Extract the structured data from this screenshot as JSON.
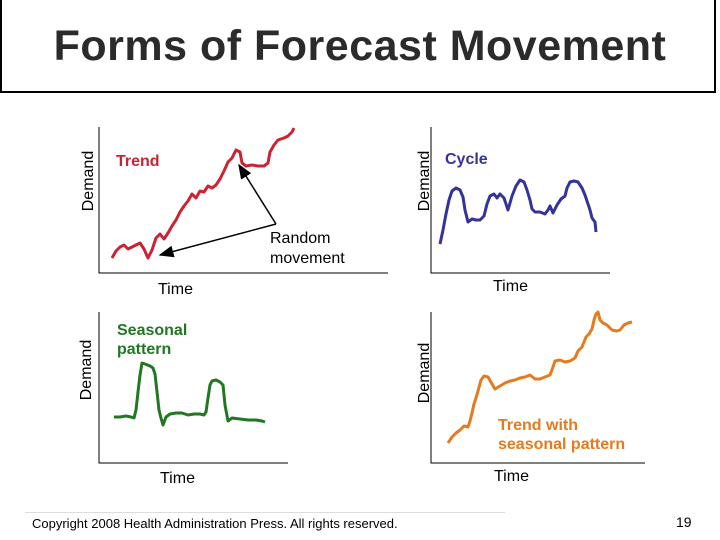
{
  "title": "Forms of Forecast Movement",
  "panels": {
    "trend": {
      "label": "Trend",
      "color": "#cc2233",
      "ylabel": "Demand",
      "xlabel": "Time"
    },
    "cycle": {
      "label": "Cycle",
      "color": "#33339a",
      "ylabel": "Demand",
      "xlabel": "Time"
    },
    "seasonal": {
      "label_line1": "Seasonal",
      "label_line2": "pattern",
      "color": "#227722",
      "ylabel": "Demand",
      "xlabel": "Time"
    },
    "trend_seasonal": {
      "label_line1": "Trend with",
      "label_line2": "seasonal pattern",
      "color": "#e67a1e",
      "ylabel": "Demand",
      "xlabel": "Time"
    }
  },
  "annotation": {
    "line1": "Random",
    "line2": "movement"
  },
  "footer": "Copyright 2008 Health Administration Press. All rights reserved.",
  "page_number": "19"
}
